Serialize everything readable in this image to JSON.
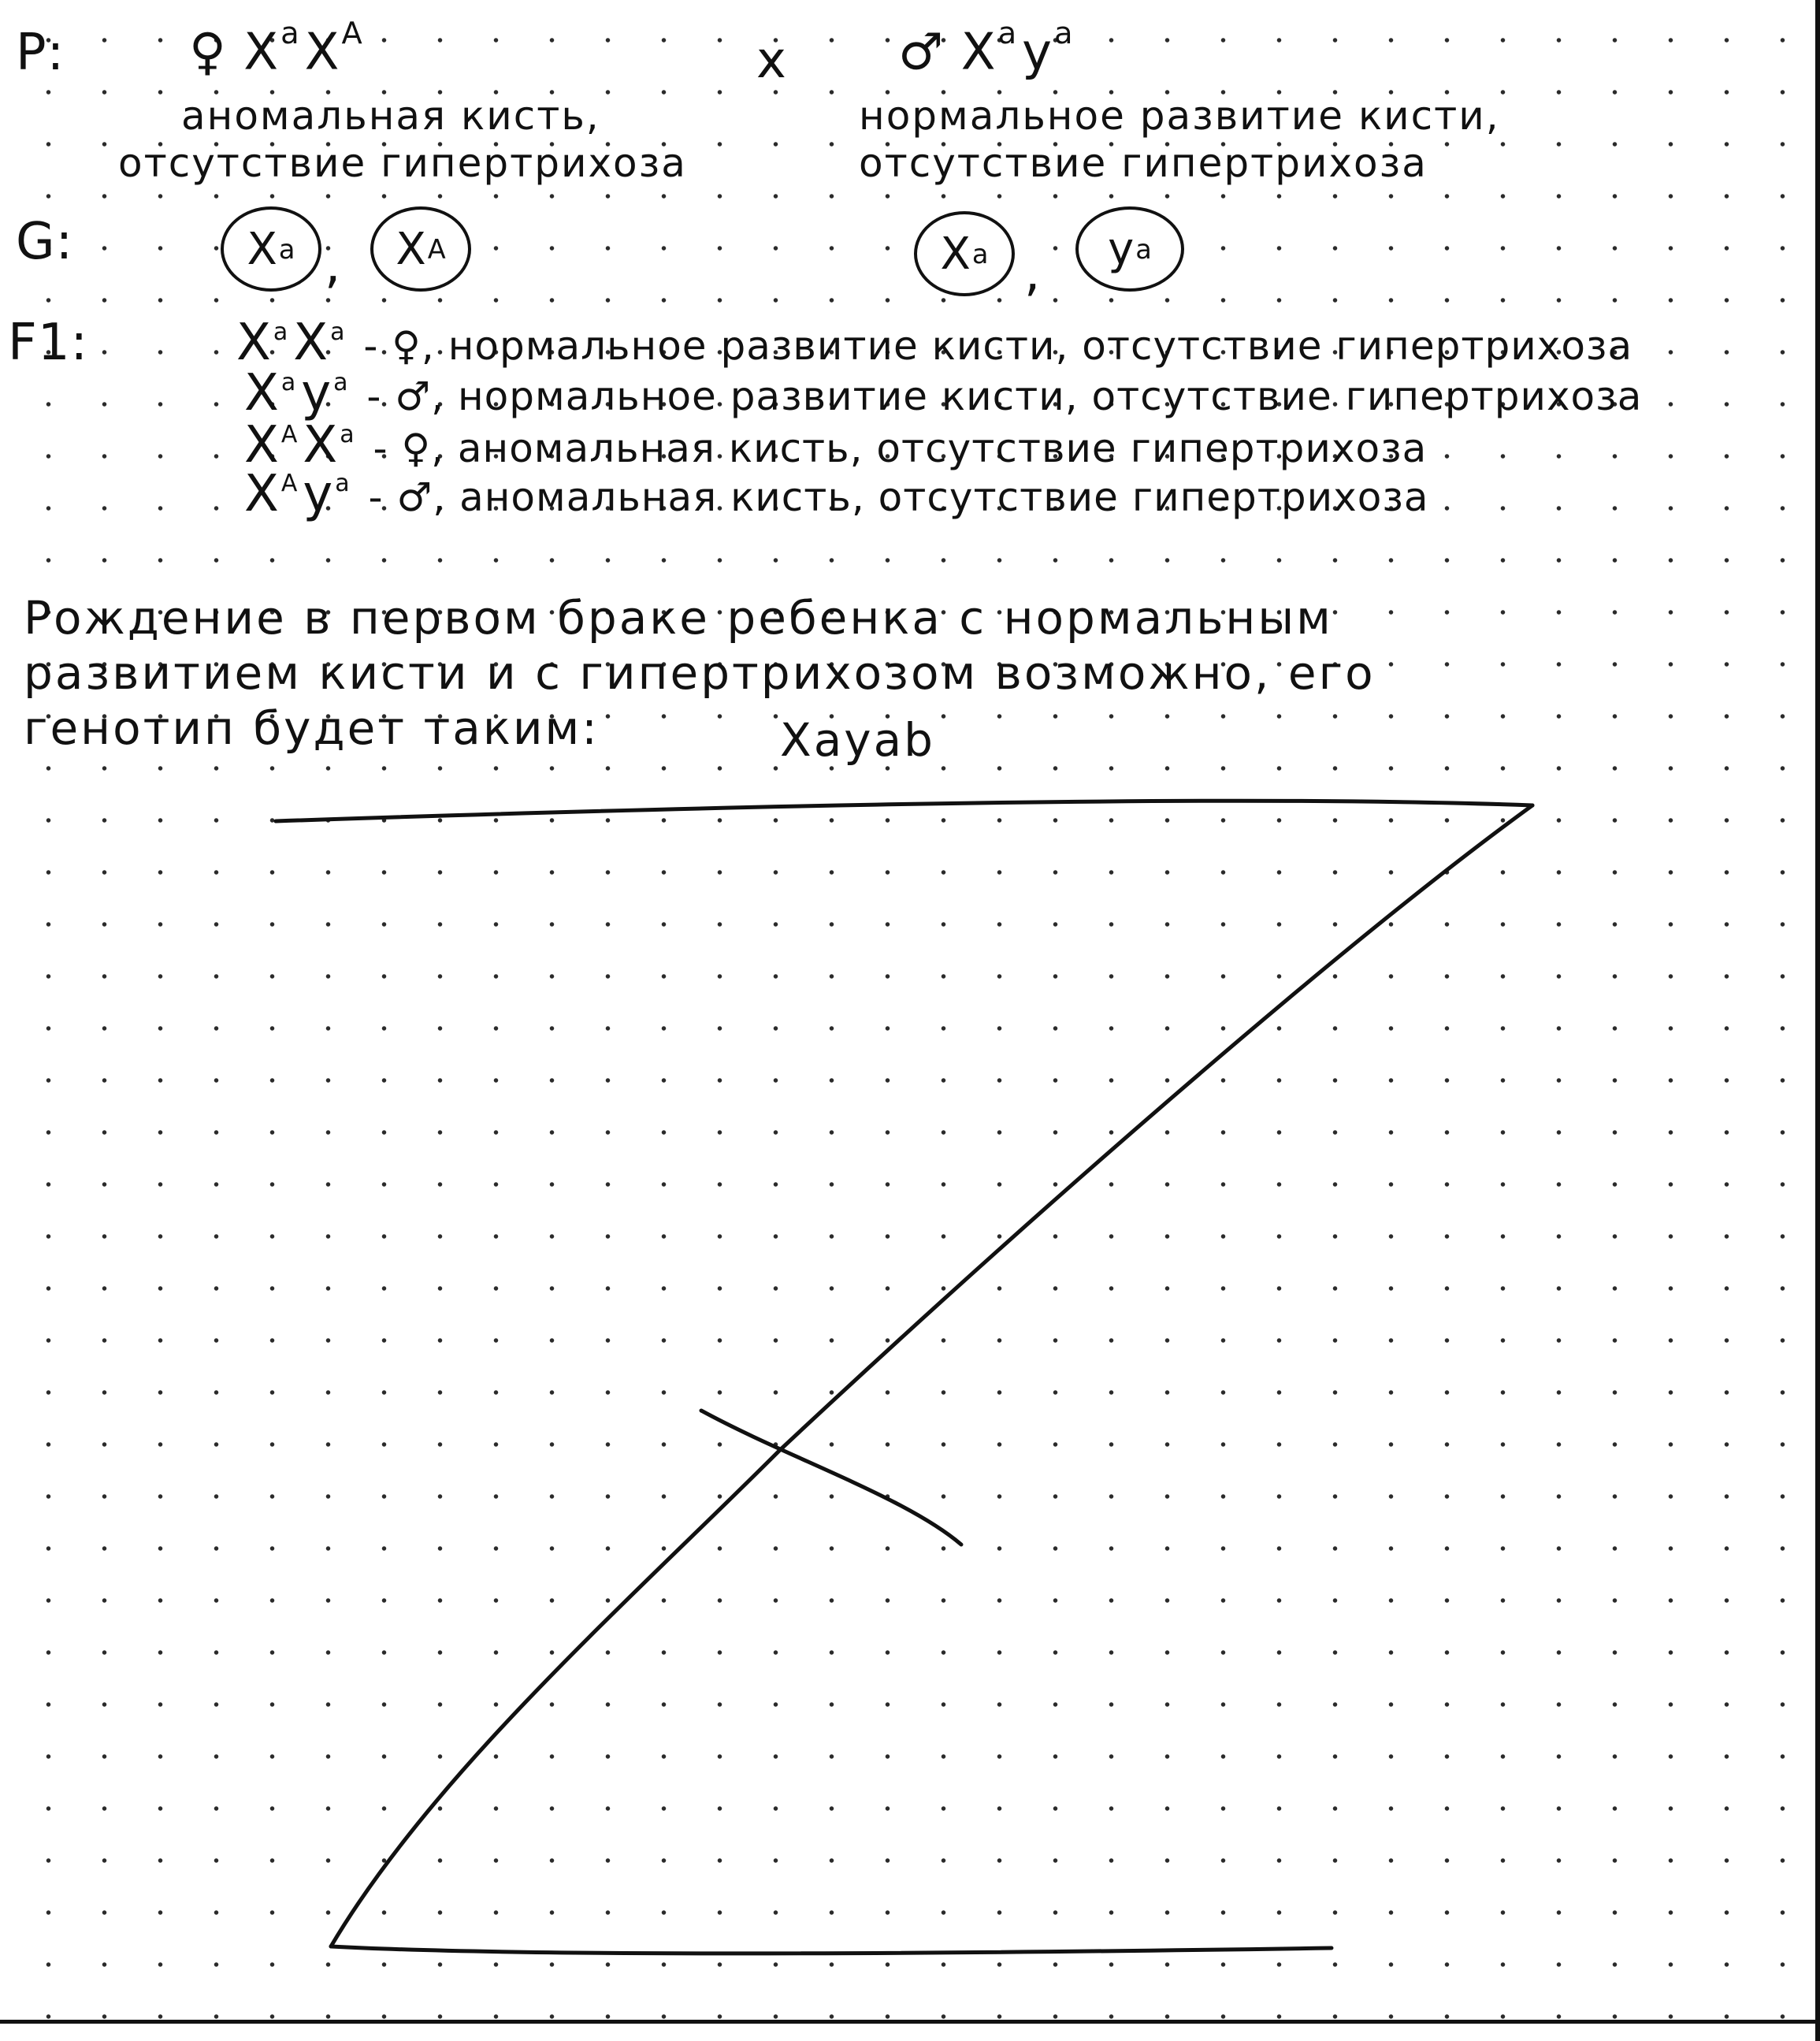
{
  "p_row": {
    "label": "P:",
    "female": "♀ X",
    "female_sup1": "a",
    "female_x2": "X",
    "female_sup2": "A",
    "female_desc1": "аномальная кисть,",
    "female_desc2": "отсутствие гипертрихоза",
    "cross": "x",
    "male": "♂ X",
    "male_sup1": "a",
    "male_y": "y",
    "male_sup2": "a",
    "male_desc1": "нормальное развитие кисти,",
    "male_desc2": "отсутствие гипертрихоза"
  },
  "g_row": {
    "label": "G:",
    "gamete1": "X",
    "gamete1_sup": "a",
    "gamete2": "X",
    "gamete2_sup": "A",
    "gamete3": "X",
    "gamete3_sup": "a",
    "gamete4": "y",
    "gamete4_sup": "a",
    "sep1": ",",
    "sep2": ","
  },
  "f1": {
    "label": "F1:",
    "rows": [
      {
        "g1": "X",
        "s1": "a",
        "g2": "X",
        "s2": "a",
        "text": "- ♀, нормальное развитие кисти, отсутствие гипертрихоза"
      },
      {
        "g1": "X",
        "s1": "a",
        "g2": "y",
        "s2": "a",
        "text": "- ♂, нормальное развитие кисти, отсутствие гипертрихоза"
      },
      {
        "g1": "X",
        "s1": "A",
        "g2": "X",
        "s2": "a",
        "text": "- ♀, аномальная кисть, отсутствие гипертрихоза"
      },
      {
        "g1": "X",
        "s1": "A",
        "g2": "y",
        "s2": "a",
        "text": "- ♂, аномальная кисть, отсутствие гипертрихоза"
      }
    ]
  },
  "conclusion": {
    "line1": "Рождение в первом браке ребенка с нормальным",
    "line2": "развитием кисти и с гипертрихозом возможно, его",
    "line3": "генотип будет таким:",
    "genotype": "Xayab"
  }
}
